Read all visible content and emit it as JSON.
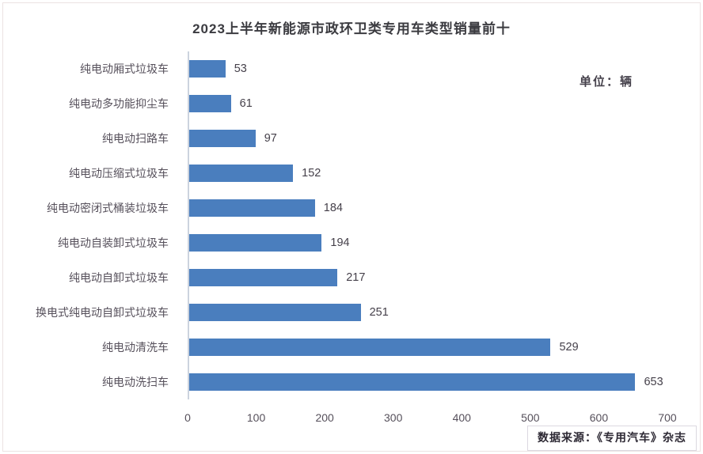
{
  "page": {
    "title": "2023上半年新能源市政环卫类专用车类型销量前十",
    "unit_label": "单位：辆",
    "source_note": "数据来源：《专用汽车》杂志"
  },
  "colors": {
    "bar": "#4a7ebe",
    "axis_line": "#ccd3de",
    "frame_border": "#ece3e3"
  },
  "chart_data": {
    "type": "bar",
    "orientation": "horizontal",
    "title": "2023上半年新能源市政环卫类专用车类型销量前十",
    "unit": "辆",
    "categories": [
      "纯电动厢式垃圾车",
      "纯电动多功能抑尘车",
      "纯电动扫路车",
      "纯电动压缩式垃圾车",
      "纯电动密闭式桶装垃圾车",
      "纯电动自装卸式垃圾车",
      "纯电动自卸式垃圾车",
      "换电式纯电动自卸式垃圾车",
      "纯电动清洗车",
      "纯电动洗扫车"
    ],
    "values": [
      53,
      61,
      97,
      152,
      184,
      194,
      217,
      251,
      529,
      653
    ],
    "x_ticks": [
      0,
      100,
      200,
      300,
      400,
      500,
      600,
      700
    ],
    "xlim": [
      0,
      700
    ],
    "grid": false,
    "value_labels": true,
    "legend": false
  }
}
